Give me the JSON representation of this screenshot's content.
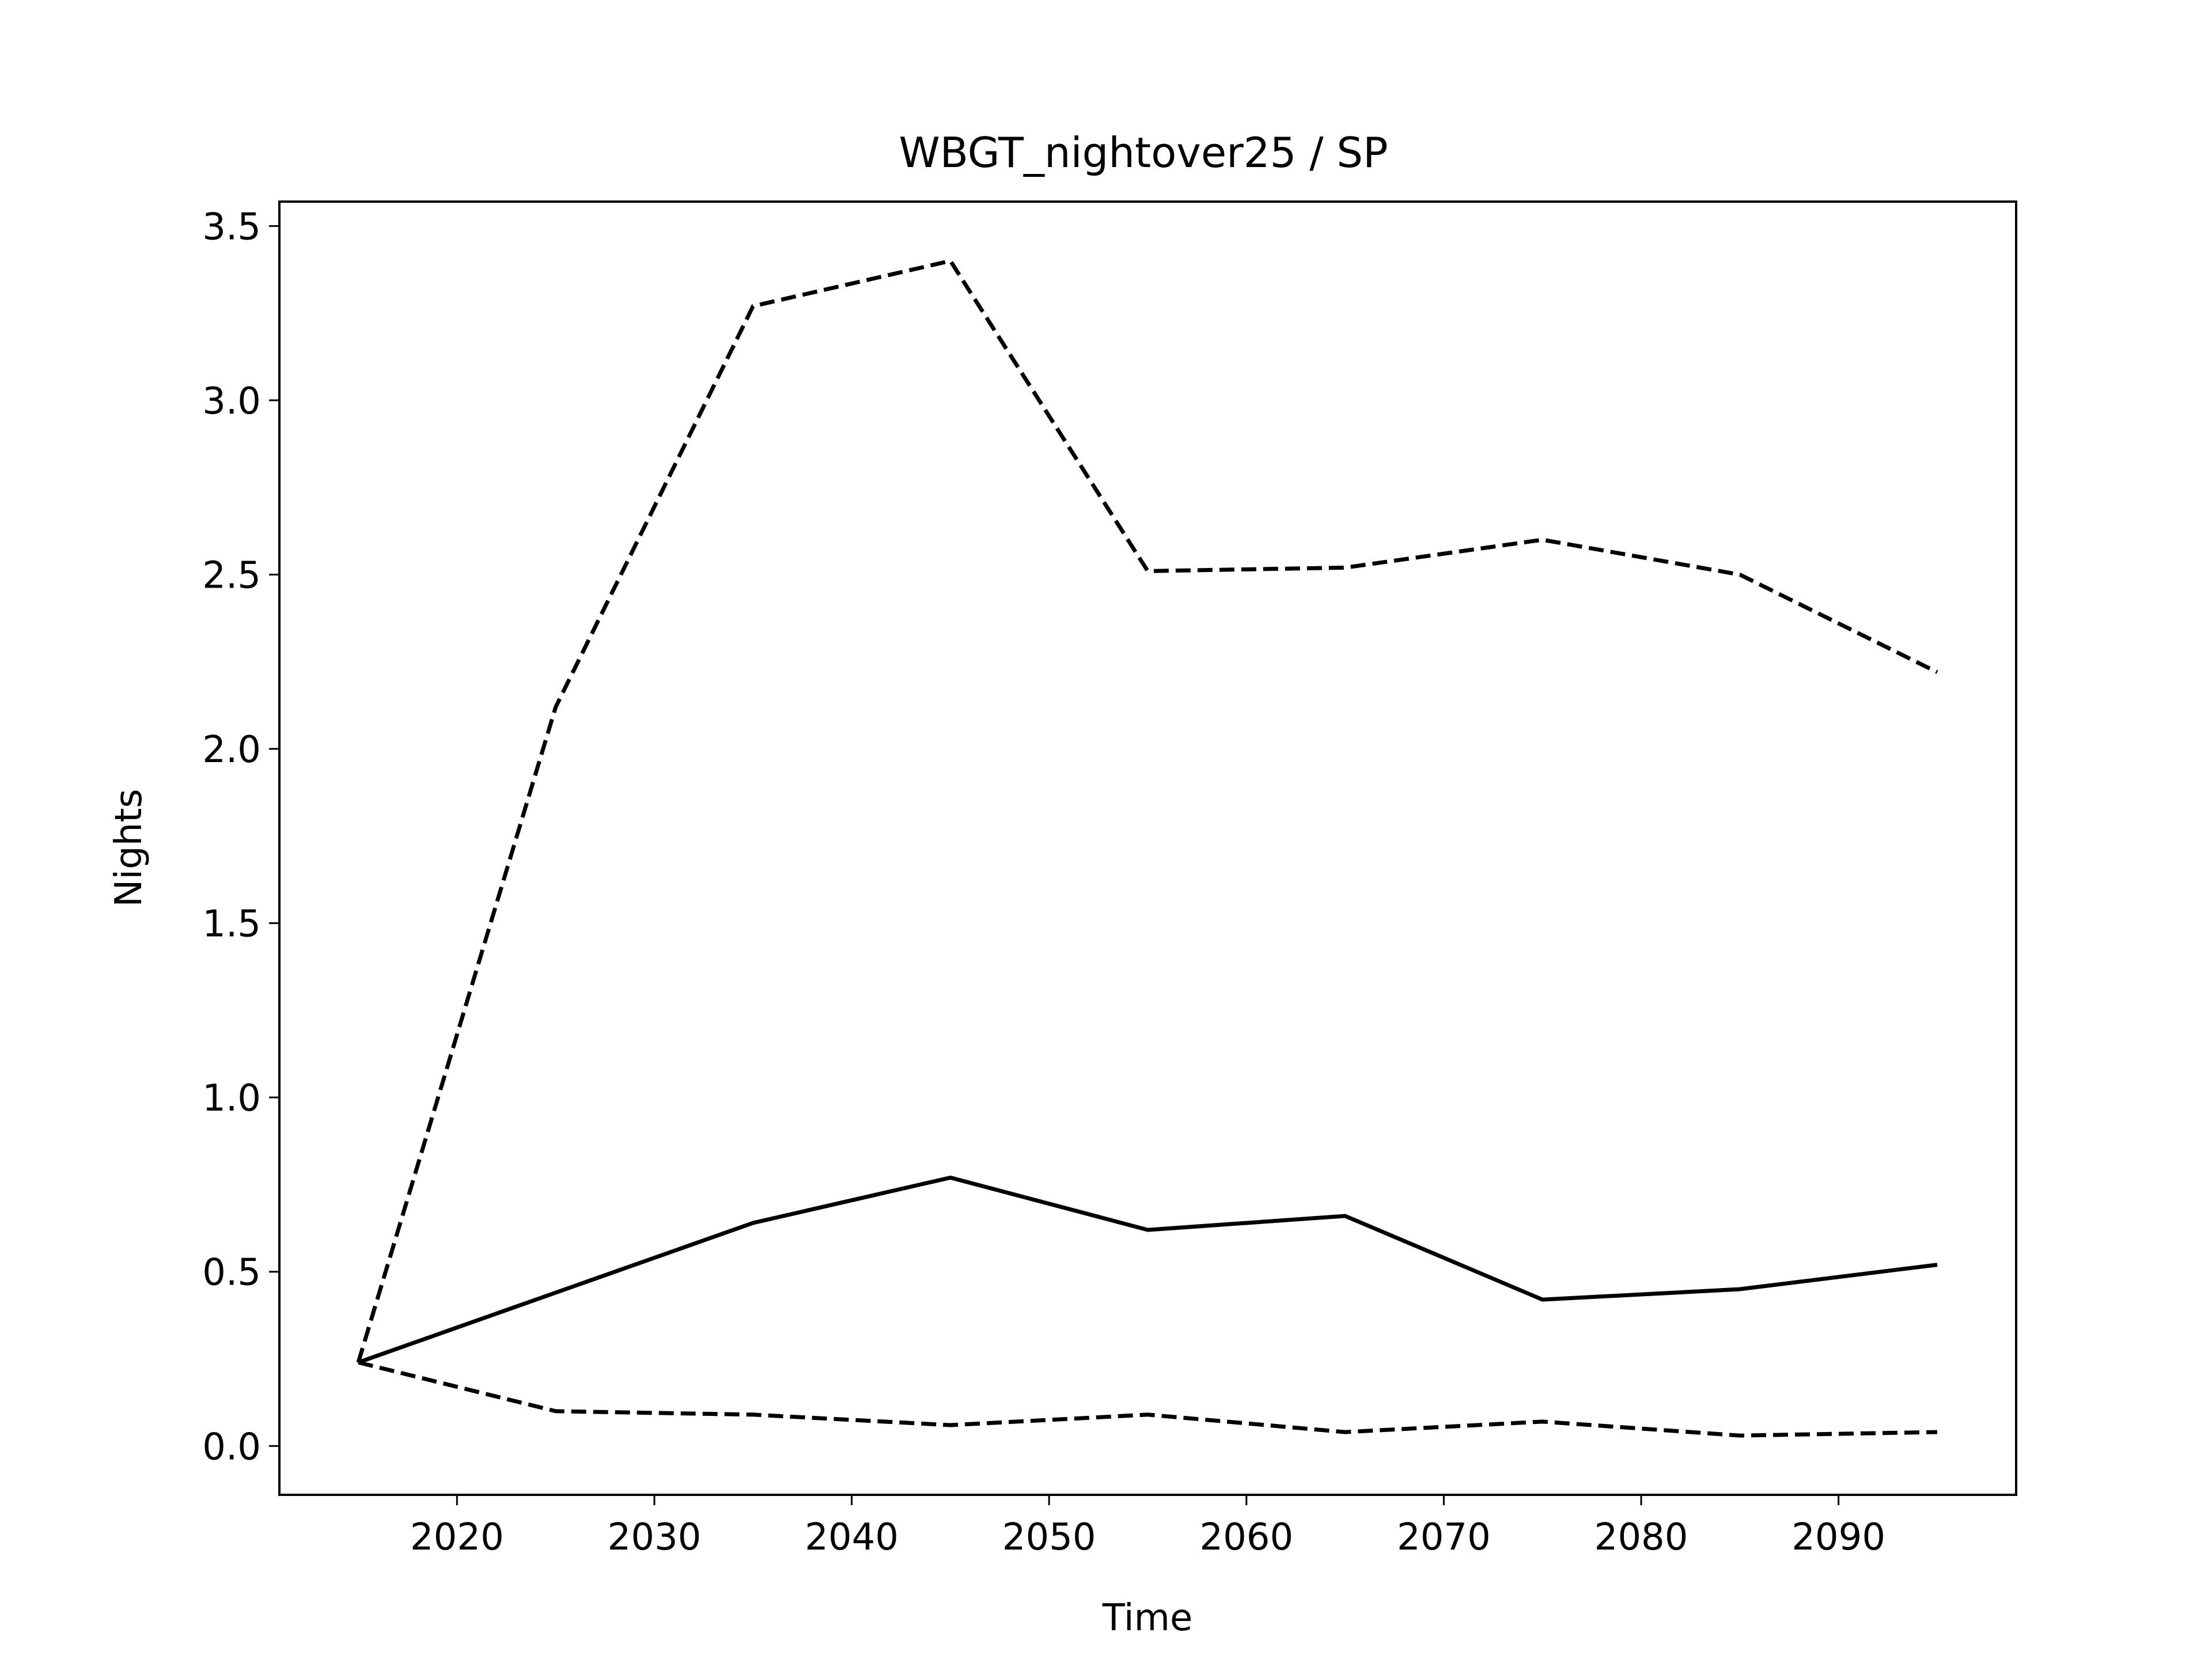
{
  "chart_data": {
    "type": "line",
    "title": "WBGT_nightover25 / SP",
    "xlabel": "Time",
    "ylabel": "Nights",
    "xlim": [
      2011,
      2099
    ],
    "ylim": [
      -0.14,
      3.57
    ],
    "xticks": [
      2020,
      2030,
      2040,
      2050,
      2060,
      2070,
      2080,
      2090
    ],
    "yticks": [
      0.0,
      0.5,
      1.0,
      1.5,
      2.0,
      2.5,
      3.0,
      3.5
    ],
    "ytick_labels": [
      "0.0",
      "0.5",
      "1.0",
      "1.5",
      "2.0",
      "2.5",
      "3.0",
      "3.5"
    ],
    "grid": false,
    "x": [
      2015,
      2025,
      2035,
      2045,
      2055,
      2065,
      2075,
      2085,
      2095
    ],
    "series": [
      {
        "style": "dashed",
        "values": [
          0.24,
          2.12,
          3.27,
          3.4,
          2.51,
          2.52,
          2.6,
          2.5,
          2.22
        ]
      },
      {
        "style": "solid",
        "values": [
          0.24,
          0.44,
          0.64,
          0.77,
          0.62,
          0.66,
          0.42,
          0.45,
          0.52
        ]
      },
      {
        "style": "dashed",
        "values": [
          0.24,
          0.1,
          0.09,
          0.06,
          0.09,
          0.04,
          0.07,
          0.03,
          0.04
        ]
      }
    ],
    "colors": {
      "line": "#000000",
      "background": "#ffffff"
    }
  }
}
